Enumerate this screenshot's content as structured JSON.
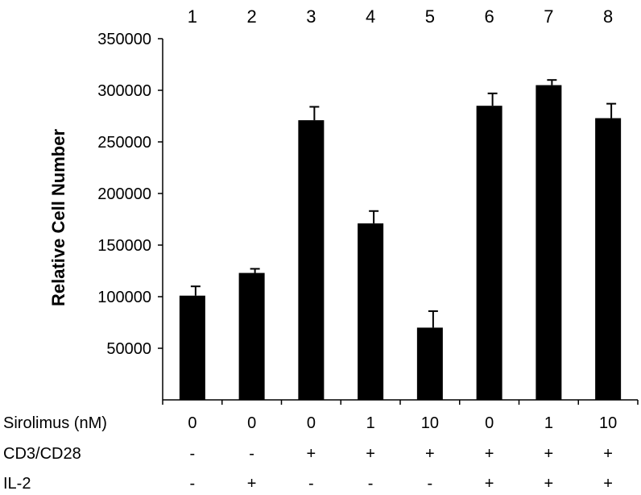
{
  "chart_data": {
    "type": "bar",
    "title": "",
    "xlabel": "",
    "ylabel": "Relative Cell Number",
    "ylim": [
      0,
      350000
    ],
    "yticks": [
      50000,
      100000,
      150000,
      200000,
      250000,
      300000,
      350000
    ],
    "categories": [
      "1",
      "2",
      "3",
      "4",
      "5",
      "6",
      "7",
      "8"
    ],
    "values": [
      101000,
      123000,
      271000,
      171000,
      70000,
      285000,
      305000,
      273000
    ],
    "errors": [
      9000,
      4000,
      13000,
      12000,
      16000,
      12000,
      5000,
      14000
    ],
    "grid": false,
    "legend": "none",
    "bar_color": "#000000",
    "conditions": [
      {
        "label": "Sirolimus (nM)",
        "values": [
          "0",
          "0",
          "0",
          "1",
          "10",
          "0",
          "1",
          "10"
        ]
      },
      {
        "label": "CD3/CD28",
        "values": [
          "-",
          "-",
          "+",
          "+",
          "+",
          "+",
          "+",
          "+"
        ]
      },
      {
        "label": "IL-2",
        "values": [
          "-",
          "+",
          "-",
          "-",
          "-",
          "+",
          "+",
          "+"
        ]
      }
    ]
  }
}
